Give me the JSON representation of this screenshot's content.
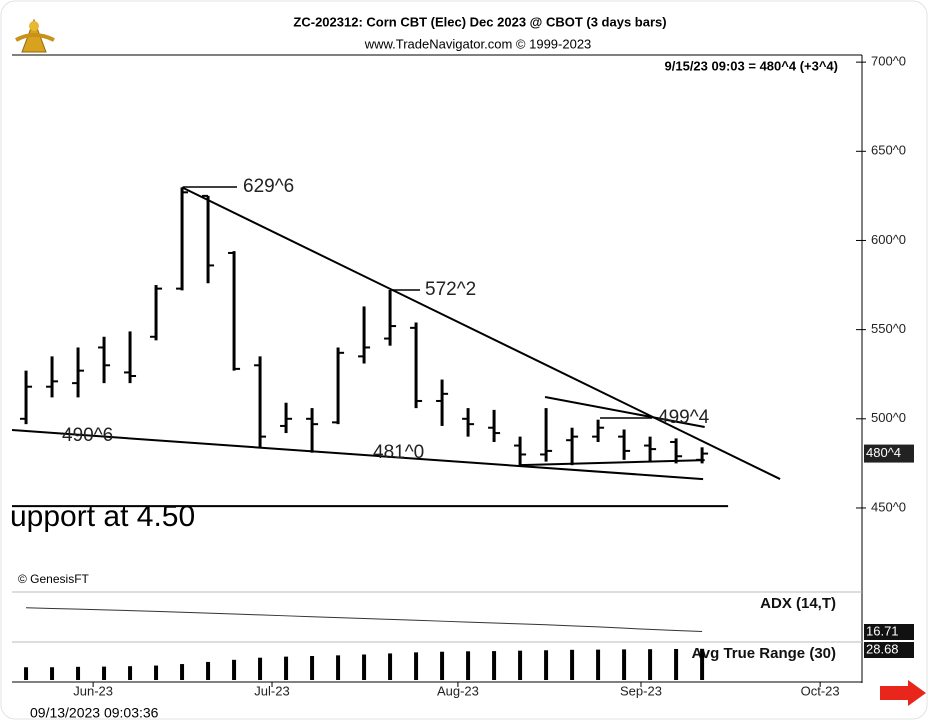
{
  "chart_data": {
    "type": "ohlc",
    "title": "ZC-202312:  Corn CBT (Elec) Dec 2023 @ CBOT  (3 days bars)",
    "subtitle": "www.TradeNavigator.com © 1999-2023",
    "quote": "9/15/23 09:03 = 480^4 (+3^4)",
    "last_price": {
      "value": 480.5,
      "label": "480^4"
    },
    "copyright": "© GenesisFT",
    "timestamp": "09/13/2023 09:03:36",
    "support_text": "upport at 4.50",
    "categories": [
      null,
      null,
      null,
      null,
      null,
      null,
      null,
      null,
      null,
      null,
      null,
      null,
      null,
      null,
      null,
      null,
      null,
      null,
      null,
      null,
      null,
      null,
      null,
      null,
      null,
      null,
      null
    ],
    "open": [
      500,
      518,
      520,
      540,
      526,
      546,
      573,
      625,
      593,
      530,
      496,
      500,
      498,
      535,
      545,
      551,
      510,
      500,
      495,
      485,
      480,
      488,
      490,
      490,
      485,
      487,
      477
    ],
    "high": [
      527,
      535,
      540,
      546,
      549,
      575,
      629.75,
      625,
      594,
      535,
      509,
      506,
      540,
      563,
      572.25,
      554,
      522,
      506,
      505,
      490,
      506,
      495,
      499.5,
      494,
      490,
      489,
      484
    ],
    "low": [
      497,
      512,
      512,
      520,
      520,
      544,
      572,
      576,
      527,
      484,
      492,
      481,
      497,
      531,
      541,
      506,
      496,
      490,
      487,
      474,
      476,
      474,
      487,
      477,
      476,
      475,
      475
    ],
    "close": [
      518,
      521,
      527,
      530,
      524,
      573,
      627,
      586,
      528,
      490,
      500,
      497,
      537,
      540,
      552,
      510,
      514,
      497,
      492,
      480,
      482,
      490,
      495,
      482,
      483,
      479,
      480.5
    ],
    "color": "#000000",
    "xlim": [
      -0.54,
      32.15
    ],
    "xticks": [
      {
        "value": 2.58,
        "label": "Jun-23"
      },
      {
        "value": 9.46,
        "label": "Jul-23"
      },
      {
        "value": 16.61,
        "label": "Aug-23"
      },
      {
        "value": 23.65,
        "label": "Sep-23"
      },
      {
        "value": 30.54,
        "label": "Oct-23"
      }
    ],
    "ylim": [
      404,
      704
    ],
    "yticks": [
      {
        "value": 450,
        "label": "450^0"
      },
      {
        "value": 500,
        "label": "500^0"
      },
      {
        "value": 550,
        "label": "550^0"
      },
      {
        "value": 600,
        "label": "600^0"
      },
      {
        "value": 650,
        "label": "650^0"
      },
      {
        "value": 700,
        "label": "700^0"
      }
    ],
    "annotations": [
      "629^6",
      "572^2",
      "499^4",
      "490^6",
      "481^0"
    ],
    "lines": [
      {
        "x": [
          6,
          29.0
        ],
        "y": [
          629.75,
          466.2
        ]
      },
      {
        "x": [
          -0.54,
          26.04
        ],
        "y": [
          493.7,
          466.2
        ]
      },
      {
        "x": [
          19.96,
          26.1
        ],
        "y": [
          512.2,
          495.4
        ]
      },
      {
        "x": [
          19.0,
          26.1
        ],
        "y": [
          474,
          476.8
        ]
      },
      {
        "x": [
          -0.54,
          27.0
        ],
        "y": [
          451,
          451
        ]
      }
    ],
    "adx": {
      "name": "ADX (14,T)",
      "ylim": [
        12,
        36
      ],
      "values": [
        30,
        29.6,
        29.2,
        28.8,
        28.4,
        28,
        27.5,
        27,
        26.5,
        26,
        25.5,
        25,
        24.5,
        24,
        23.5,
        23,
        22.5,
        22,
        21.5,
        21,
        20.5,
        19.9,
        19.3,
        18.6,
        17.9,
        17.3,
        16.71
      ]
    },
    "atr": {
      "name": "Avg True Range (30)",
      "ylim": [
        14,
        30
      ],
      "values": [
        20,
        20,
        20.2,
        20.3,
        20.5,
        20.8,
        21.5,
        22.5,
        23.5,
        24.5,
        25,
        25.3,
        25.6,
        26,
        26.5,
        27,
        27.3,
        27.5,
        27.6,
        27.8,
        28,
        28.2,
        28.3,
        28.4,
        28.5,
        28.6,
        28.68
      ]
    }
  }
}
